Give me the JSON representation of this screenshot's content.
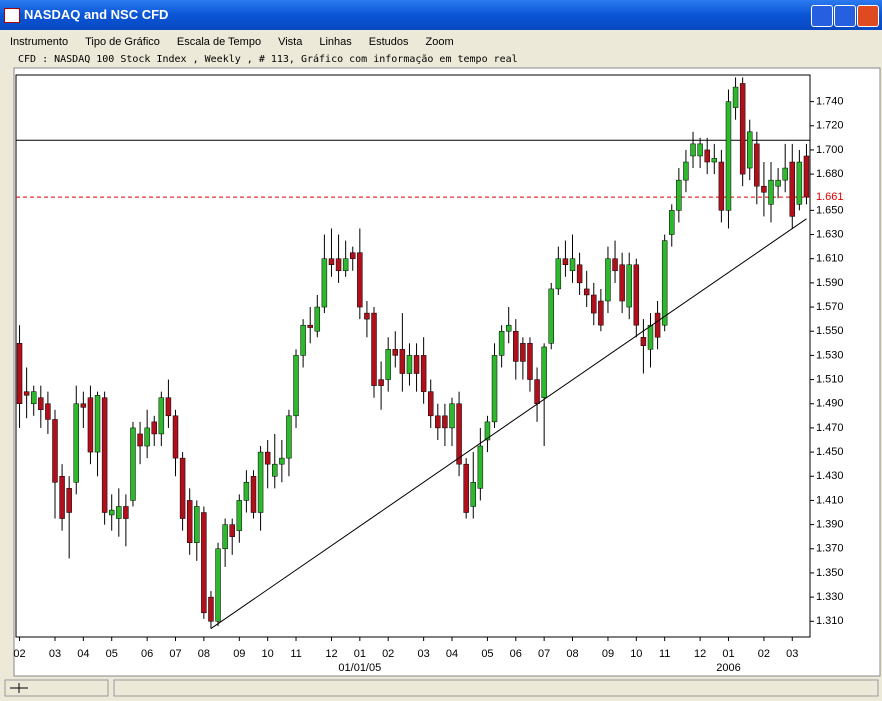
{
  "window": {
    "title": "NASDAQ and NSC CFD",
    "menu": [
      "Instrumento",
      "Tipo de Gráfico",
      "Escala de Tempo",
      "Vista",
      "Linhas",
      "Estudos",
      "Zoom"
    ]
  },
  "chart_data": {
    "type": "candlestick",
    "title": "CFD : NASDAQ 100 Stock Index , Weekly , # 113, Gráfico com informação em tempo real",
    "categories": [
      "02",
      null,
      null,
      null,
      null,
      "03",
      null,
      null,
      null,
      "04",
      null,
      null,
      null,
      "05",
      null,
      null,
      null,
      null,
      "06",
      null,
      null,
      null,
      "07",
      null,
      null,
      null,
      "08",
      null,
      null,
      null,
      null,
      "09",
      null,
      null,
      null,
      "10",
      null,
      null,
      null,
      "11",
      null,
      null,
      null,
      null,
      "12",
      null,
      null,
      null,
      "01",
      null,
      null,
      null,
      "02",
      null,
      null,
      null,
      null,
      "03",
      null,
      null,
      null,
      "04",
      null,
      null,
      null,
      null,
      "05",
      null,
      null,
      null,
      "06",
      null,
      null,
      null,
      "07",
      null,
      null,
      null,
      "08",
      null,
      null,
      null,
      null,
      "09",
      null,
      null,
      null,
      "10",
      null,
      null,
      null,
      "11",
      null,
      null,
      null,
      null,
      "12",
      null,
      null,
      null,
      "01",
      null,
      null,
      null,
      null,
      "02",
      null,
      null,
      null,
      "03",
      null,
      null
    ],
    "year_labels": [
      "01/01/05",
      "2006"
    ],
    "open": [
      1.54,
      1.5,
      1.49,
      1.495,
      1.49,
      1.477,
      1.43,
      1.42,
      1.425,
      1.49,
      1.495,
      1.45,
      1.495,
      1.398,
      1.395,
      1.405,
      1.41,
      1.465,
      1.455,
      1.475,
      1.465,
      1.495,
      1.48,
      1.445,
      1.41,
      1.375,
      1.4,
      1.33,
      1.31,
      1.37,
      1.39,
      1.385,
      1.41,
      1.43,
      1.4,
      1.45,
      1.43,
      1.44,
      1.445,
      1.48,
      1.53,
      1.555,
      1.55,
      1.57,
      1.61,
      1.61,
      1.6,
      1.615,
      1.615,
      1.565,
      1.565,
      1.51,
      1.51,
      1.535,
      1.535,
      1.515,
      1.53,
      1.53,
      1.5,
      1.48,
      1.48,
      1.47,
      1.49,
      1.44,
      1.405,
      1.42,
      1.46,
      1.475,
      1.53,
      1.55,
      1.55,
      1.54,
      1.54,
      1.51,
      1.495,
      1.54,
      1.585,
      1.61,
      1.6,
      1.605,
      1.585,
      1.58,
      1.575,
      1.575,
      1.61,
      1.605,
      1.57,
      1.605,
      1.545,
      1.535,
      1.565,
      1.555,
      1.63,
      1.65,
      1.675,
      1.695,
      1.695,
      1.7,
      1.69,
      1.69,
      1.65,
      1.735,
      1.755,
      1.685,
      1.705,
      1.67,
      1.655,
      1.67,
      1.675,
      1.69,
      1.655,
      1.695
    ],
    "high": [
      1.555,
      1.52,
      1.505,
      1.505,
      1.5,
      1.485,
      1.44,
      1.43,
      1.505,
      1.5,
      1.505,
      1.5,
      1.5,
      1.415,
      1.42,
      1.415,
      1.475,
      1.475,
      1.485,
      1.48,
      1.5,
      1.51,
      1.485,
      1.45,
      1.42,
      1.41,
      1.405,
      1.335,
      1.375,
      1.395,
      1.395,
      1.415,
      1.435,
      1.435,
      1.455,
      1.46,
      1.465,
      1.46,
      1.485,
      1.535,
      1.56,
      1.57,
      1.58,
      1.63,
      1.635,
      1.63,
      1.625,
      1.62,
      1.635,
      1.575,
      1.57,
      1.525,
      1.545,
      1.55,
      1.565,
      1.54,
      1.54,
      1.545,
      1.51,
      1.49,
      1.49,
      1.495,
      1.5,
      1.445,
      1.45,
      1.47,
      1.48,
      1.54,
      1.555,
      1.57,
      1.56,
      1.545,
      1.545,
      1.52,
      1.54,
      1.59,
      1.62,
      1.625,
      1.63,
      1.615,
      1.6,
      1.59,
      1.585,
      1.62,
      1.625,
      1.615,
      1.615,
      1.61,
      1.56,
      1.565,
      1.575,
      1.63,
      1.655,
      1.685,
      1.7,
      1.715,
      1.71,
      1.71,
      1.705,
      1.7,
      1.75,
      1.76,
      1.76,
      1.725,
      1.715,
      1.69,
      1.69,
      1.685,
      1.705,
      1.705,
      1.7,
      1.705
    ],
    "low": [
      1.47,
      1.478,
      1.48,
      1.47,
      1.465,
      1.395,
      1.385,
      1.362,
      1.415,
      1.47,
      1.44,
      1.43,
      1.39,
      1.385,
      1.38,
      1.372,
      1.405,
      1.44,
      1.445,
      1.455,
      1.455,
      1.47,
      1.43,
      1.385,
      1.365,
      1.36,
      1.312,
      1.304,
      1.306,
      1.355,
      1.365,
      1.375,
      1.4,
      1.395,
      1.385,
      1.42,
      1.42,
      1.425,
      1.43,
      1.47,
      1.52,
      1.54,
      1.545,
      1.565,
      1.595,
      1.59,
      1.595,
      1.6,
      1.56,
      1.545,
      1.495,
      1.485,
      1.5,
      1.52,
      1.5,
      1.505,
      1.5,
      1.49,
      1.47,
      1.46,
      1.455,
      1.455,
      1.43,
      1.395,
      1.395,
      1.41,
      1.45,
      1.47,
      1.52,
      1.54,
      1.51,
      1.51,
      1.5,
      1.475,
      1.455,
      1.535,
      1.58,
      1.595,
      1.59,
      1.58,
      1.57,
      1.555,
      1.55,
      1.565,
      1.59,
      1.565,
      1.56,
      1.545,
      1.515,
      1.52,
      1.535,
      1.55,
      1.62,
      1.64,
      1.665,
      1.685,
      1.685,
      1.68,
      1.68,
      1.64,
      1.635,
      1.725,
      1.67,
      1.675,
      1.655,
      1.645,
      1.64,
      1.66,
      1.665,
      1.635,
      1.65,
      1.655
    ],
    "close": [
      1.49,
      1.497,
      1.5,
      1.485,
      1.477,
      1.425,
      1.395,
      1.4,
      1.49,
      1.487,
      1.45,
      1.497,
      1.4,
      1.402,
      1.405,
      1.395,
      1.47,
      1.455,
      1.47,
      1.465,
      1.495,
      1.48,
      1.445,
      1.395,
      1.375,
      1.405,
      1.317,
      1.31,
      1.37,
      1.39,
      1.38,
      1.41,
      1.425,
      1.4,
      1.45,
      1.44,
      1.44,
      1.445,
      1.48,
      1.53,
      1.555,
      1.553,
      1.57,
      1.61,
      1.605,
      1.6,
      1.61,
      1.61,
      1.57,
      1.56,
      1.505,
      1.505,
      1.535,
      1.53,
      1.515,
      1.53,
      1.515,
      1.5,
      1.48,
      1.47,
      1.47,
      1.49,
      1.44,
      1.4,
      1.425,
      1.455,
      1.475,
      1.53,
      1.55,
      1.555,
      1.525,
      1.525,
      1.51,
      1.49,
      1.537,
      1.585,
      1.61,
      1.605,
      1.61,
      1.59,
      1.58,
      1.565,
      1.555,
      1.61,
      1.6,
      1.575,
      1.605,
      1.555,
      1.538,
      1.555,
      1.545,
      1.625,
      1.65,
      1.675,
      1.69,
      1.705,
      1.705,
      1.69,
      1.693,
      1.65,
      1.74,
      1.752,
      1.68,
      1.715,
      1.67,
      1.665,
      1.675,
      1.675,
      1.685,
      1.645,
      1.69,
      1.661
    ],
    "up_color": "#2db82d",
    "down_color": "#b0101c",
    "ylim": [
      1.297,
      1.762
    ],
    "yticks": [
      {
        "value": 1.31,
        "label": "1.310"
      },
      {
        "value": 1.33,
        "label": "1.330"
      },
      {
        "value": 1.35,
        "label": "1.350"
      },
      {
        "value": 1.37,
        "label": "1.370"
      },
      {
        "value": 1.39,
        "label": "1.390"
      },
      {
        "value": 1.41,
        "label": "1.410"
      },
      {
        "value": 1.43,
        "label": "1.430"
      },
      {
        "value": 1.45,
        "label": "1.450"
      },
      {
        "value": 1.47,
        "label": "1.470"
      },
      {
        "value": 1.49,
        "label": "1.490"
      },
      {
        "value": 1.51,
        "label": "1.510"
      },
      {
        "value": 1.53,
        "label": "1.530"
      },
      {
        "value": 1.55,
        "label": "1.550"
      },
      {
        "value": 1.57,
        "label": "1.570"
      },
      {
        "value": 1.59,
        "label": "1.590"
      },
      {
        "value": 1.61,
        "label": "1.610"
      },
      {
        "value": 1.63,
        "label": "1.630"
      },
      {
        "value": 1.65,
        "label": "1.650"
      },
      {
        "value": 1.68,
        "label": "1.680"
      },
      {
        "value": 1.7,
        "label": "1.700"
      },
      {
        "value": 1.72,
        "label": "1.720"
      },
      {
        "value": 1.74,
        "label": "1.740"
      }
    ],
    "price_line": {
      "value": 1.661,
      "label": "1.661",
      "color": "#e00000"
    },
    "level_line": {
      "value": 1.708
    },
    "trendline": {
      "from": [
        27,
        1.304
      ],
      "to": [
        111,
        1.643
      ]
    }
  }
}
